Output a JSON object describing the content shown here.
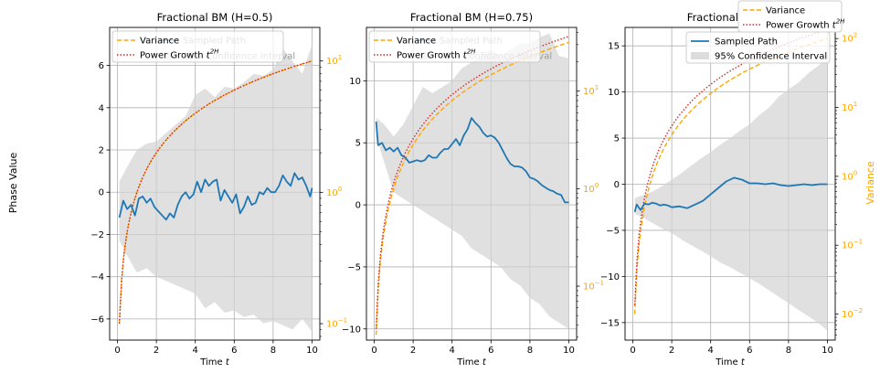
{
  "figure": {
    "left_ylabel": "Phase Value",
    "right_ylabel": "Variance",
    "floating_legend": [
      {
        "label": "Variance",
        "series": "variance"
      },
      {
        "label": "Power Growth t^2H",
        "series": "power"
      }
    ]
  },
  "colors": {
    "path": "#1f77b4",
    "variance": "#ffa500",
    "power": "#d62728",
    "ci_fill": "#d3d3d3",
    "right_axis": "#ffa500",
    "grid": "#b0b0b0"
  },
  "chart_data": [
    {
      "type": "line",
      "title": "Fractional BM (H=0.5)",
      "xlabel": "Time t",
      "ylabel": "Phase Value",
      "xlim": [
        -0.4,
        10.4
      ],
      "ylim": [
        -7.0,
        7.8
      ],
      "xticks": [
        0,
        2,
        4,
        6,
        8,
        10
      ],
      "yticks": [
        -6,
        -4,
        -2,
        0,
        2,
        4,
        6
      ],
      "right_axis": {
        "scale": "log",
        "ylim": [
          0.075,
          18
        ],
        "ticks": [
          {
            "v": 0.1,
            "exp": "−1"
          },
          {
            "v": 1,
            "exp": "0"
          },
          {
            "v": 10,
            "exp": "1"
          }
        ],
        "color": "#ffa500"
      },
      "legend": [
        {
          "label": "Variance",
          "series": "variance"
        },
        {
          "label": "Power Growth t^2H",
          "series": "power"
        },
        {
          "label": "Sampled Path",
          "series": "path",
          "hidden": true
        },
        {
          "label": "95% Confidence Interval",
          "series": "ci",
          "hidden": true
        }
      ],
      "grid": true,
      "series": [
        {
          "name": "Sampled Path",
          "kind": "path",
          "axis": "left",
          "x": [
            0.1,
            0.3,
            0.5,
            0.7,
            0.9,
            1.1,
            1.3,
            1.5,
            1.7,
            1.9,
            2.1,
            2.3,
            2.5,
            2.7,
            2.9,
            3.1,
            3.3,
            3.5,
            3.7,
            3.9,
            4.1,
            4.3,
            4.5,
            4.7,
            4.9,
            5.1,
            5.3,
            5.5,
            5.7,
            5.9,
            6.1,
            6.3,
            6.5,
            6.7,
            6.9,
            7.1,
            7.3,
            7.5,
            7.7,
            7.9,
            8.1,
            8.3,
            8.5,
            8.7,
            8.9,
            9.1,
            9.3,
            9.5,
            9.7,
            9.9,
            10.0
          ],
          "y": [
            -1.2,
            -0.4,
            -0.8,
            -0.6,
            -1.1,
            -0.3,
            -0.2,
            -0.5,
            -0.3,
            -0.7,
            -0.9,
            -1.1,
            -1.3,
            -1.0,
            -1.2,
            -0.6,
            -0.2,
            0.0,
            -0.3,
            -0.1,
            0.5,
            0.0,
            0.6,
            0.3,
            0.5,
            0.6,
            -0.4,
            0.1,
            -0.2,
            -0.5,
            -0.1,
            -1.0,
            -0.7,
            -0.2,
            -0.6,
            -0.5,
            0.0,
            -0.1,
            0.2,
            0.0,
            0.0,
            0.3,
            0.8,
            0.5,
            0.3,
            0.9,
            0.6,
            0.7,
            0.3,
            -0.2,
            0.2
          ]
        },
        {
          "name": "95% Confidence Interval",
          "kind": "ci",
          "axis": "left",
          "x": [
            0.1,
            0.5,
            1,
            1.5,
            2,
            2.5,
            3,
            3.5,
            4,
            4.5,
            5,
            5.5,
            6,
            6.5,
            7,
            7.5,
            8,
            8.5,
            9,
            9.5,
            10
          ],
          "upper": [
            0.5,
            1.2,
            2.0,
            2.3,
            2.4,
            2.8,
            3.2,
            3.6,
            4.6,
            4.9,
            4.5,
            5.0,
            4.9,
            5.2,
            5.6,
            5.5,
            5.8,
            6.8,
            6.2,
            5.6,
            7.0
          ],
          "lower": [
            -2.3,
            -3.0,
            -3.8,
            -3.6,
            -4.0,
            -4.2,
            -4.4,
            -4.6,
            -4.8,
            -5.5,
            -5.2,
            -5.7,
            -5.6,
            -5.9,
            -5.8,
            -6.2,
            -6.1,
            -6.3,
            -6.5,
            -6.0,
            -6.6
          ]
        },
        {
          "name": "Variance",
          "kind": "variance",
          "axis": "right",
          "func": "power",
          "a": 1,
          "exponent": 1.0,
          "x_range": [
            0.1,
            10
          ]
        },
        {
          "name": "Power Growth t^2H",
          "kind": "power",
          "axis": "right",
          "func": "power",
          "a": 1,
          "exponent": 1.0,
          "x_range": [
            0.1,
            10
          ]
        }
      ]
    },
    {
      "type": "line",
      "title": "Fractional BM (H=0.75)",
      "xlabel": "Time t",
      "ylabel": "",
      "xlim": [
        -0.4,
        10.4
      ],
      "ylim": [
        -10.9,
        14.3
      ],
      "xticks": [
        0,
        2,
        4,
        6,
        8,
        10
      ],
      "yticks": [
        -10,
        -5,
        0,
        5,
        10
      ],
      "right_axis": {
        "scale": "log",
        "ylim": [
          0.028,
          45
        ],
        "ticks": [
          {
            "v": 0.1,
            "exp": "−1"
          },
          {
            "v": 1,
            "exp": "0"
          },
          {
            "v": 10,
            "exp": "1"
          }
        ],
        "color": "#ffa500"
      },
      "legend": [
        {
          "label": "Variance",
          "series": "variance"
        },
        {
          "label": "Power Growth t^2H",
          "series": "power"
        },
        {
          "label": "Sampled Path",
          "series": "path",
          "hidden": true
        },
        {
          "label": "95% Confidence Interval",
          "series": "ci",
          "hidden": true
        }
      ],
      "grid": true,
      "series": [
        {
          "name": "Sampled Path",
          "kind": "path",
          "axis": "left",
          "x": [
            0.1,
            0.2,
            0.4,
            0.6,
            0.8,
            1.0,
            1.2,
            1.4,
            1.6,
            1.8,
            2.0,
            2.2,
            2.4,
            2.6,
            2.8,
            3.0,
            3.2,
            3.4,
            3.6,
            3.8,
            4.0,
            4.2,
            4.4,
            4.6,
            4.8,
            5.0,
            5.2,
            5.4,
            5.6,
            5.8,
            6.0,
            6.2,
            6.4,
            6.6,
            6.8,
            7.0,
            7.2,
            7.4,
            7.6,
            7.8,
            8.0,
            8.2,
            8.4,
            8.6,
            8.8,
            9.0,
            9.2,
            9.4,
            9.6,
            9.8,
            10.0
          ],
          "y": [
            6.7,
            4.8,
            5.0,
            4.4,
            4.6,
            4.3,
            4.6,
            4.0,
            3.8,
            3.4,
            3.5,
            3.6,
            3.5,
            3.6,
            4.0,
            3.8,
            3.8,
            4.2,
            4.5,
            4.5,
            4.9,
            5.3,
            4.8,
            5.6,
            6.1,
            7.0,
            6.6,
            6.3,
            5.8,
            5.5,
            5.6,
            5.4,
            5.0,
            4.4,
            3.8,
            3.3,
            3.1,
            3.1,
            3.0,
            2.7,
            2.2,
            2.1,
            1.9,
            1.6,
            1.4,
            1.2,
            1.1,
            0.9,
            0.8,
            0.2,
            0.2
          ]
        },
        {
          "name": "95% Confidence Interval",
          "kind": "ci",
          "axis": "left",
          "x": [
            0.1,
            0.5,
            1,
            1.5,
            2,
            2.5,
            3,
            3.5,
            4,
            4.5,
            5,
            5.5,
            6,
            6.5,
            7,
            7.5,
            8,
            8.5,
            9,
            9.5,
            10
          ],
          "upper": [
            7.0,
            6.5,
            5.5,
            6.5,
            8.0,
            9.5,
            9.0,
            9.5,
            10.0,
            11.0,
            11.5,
            12.0,
            12.5,
            12.0,
            12.5,
            13.0,
            13.0,
            13.5,
            13.8,
            12.0,
            11.8
          ],
          "lower": [
            5.5,
            3.5,
            1.0,
            0.5,
            0.0,
            -0.5,
            -1.0,
            -1.5,
            -2.0,
            -2.5,
            -3.5,
            -4.0,
            -4.5,
            -5.0,
            -6.0,
            -6.5,
            -7.5,
            -8.0,
            -9.0,
            -9.5,
            -10.0
          ]
        },
        {
          "name": "Variance",
          "kind": "variance",
          "axis": "right",
          "func": "power",
          "a": 1,
          "exponent": 1.5,
          "x_range": [
            0.1,
            10
          ]
        },
        {
          "name": "Power Growth t^2H",
          "kind": "power",
          "axis": "right",
          "func": "power",
          "a": 1.15,
          "exponent": 1.5,
          "x_range": [
            0.1,
            10
          ]
        }
      ]
    },
    {
      "type": "line",
      "title": "Fractional BM (H",
      "xlabel": "Time t",
      "ylabel": "",
      "xlim": [
        -0.4,
        10.4
      ],
      "ylim": [
        -16.9,
        17.0
      ],
      "xticks": [
        0,
        2,
        4,
        6,
        8,
        10
      ],
      "yticks": [
        -15,
        -10,
        -5,
        0,
        5,
        10,
        15
      ],
      "right_axis": {
        "scale": "log",
        "ylim": [
          0.0042,
          145
        ],
        "ticks": [
          {
            "v": 0.01,
            "exp": "−2"
          },
          {
            "v": 0.1,
            "exp": "−1"
          },
          {
            "v": 1,
            "exp": "0"
          },
          {
            "v": 10,
            "exp": "1"
          },
          {
            "v": 100,
            "exp": "2"
          }
        ],
        "color": "#ffa500"
      },
      "legend": [
        {
          "label": "Sampled Path",
          "series": "path"
        },
        {
          "label": "95% Confidence Interval",
          "series": "ci"
        }
      ],
      "grid": true,
      "series": [
        {
          "name": "Sampled Path",
          "kind": "path",
          "axis": "left",
          "x": [
            0.1,
            0.2,
            0.4,
            0.6,
            0.8,
            1.0,
            1.2,
            1.4,
            1.6,
            1.8,
            2.0,
            2.4,
            2.8,
            3.2,
            3.6,
            4.0,
            4.4,
            4.8,
            5.2,
            5.6,
            6.0,
            6.4,
            6.8,
            7.2,
            7.6,
            8.0,
            8.4,
            8.8,
            9.2,
            9.6,
            10.0
          ],
          "y": [
            -3.0,
            -2.2,
            -2.8,
            -2.1,
            -2.2,
            -2.0,
            -2.1,
            -2.3,
            -2.2,
            -2.3,
            -2.5,
            -2.4,
            -2.6,
            -2.2,
            -1.8,
            -1.1,
            -0.4,
            0.3,
            0.7,
            0.5,
            0.1,
            0.1,
            0.0,
            0.1,
            -0.1,
            -0.2,
            -0.1,
            0.0,
            -0.1,
            0.0,
            0.0
          ]
        },
        {
          "name": "95% Confidence Interval",
          "kind": "ci",
          "axis": "left",
          "x": [
            0.1,
            0.5,
            1,
            1.5,
            2,
            2.5,
            3,
            3.5,
            4,
            4.5,
            5,
            5.5,
            6,
            6.5,
            7,
            7.5,
            8,
            8.5,
            9,
            9.5,
            10
          ],
          "upper": [
            -1.5,
            -1.2,
            -0.8,
            -0.2,
            0.5,
            1.2,
            2.0,
            2.8,
            3.5,
            4.3,
            5.0,
            5.8,
            6.5,
            7.5,
            8.3,
            9.5,
            10.3,
            11.0,
            12.0,
            12.8,
            13.6
          ],
          "lower": [
            -3.2,
            -3.6,
            -4.2,
            -4.8,
            -5.3,
            -6.0,
            -6.6,
            -7.2,
            -7.8,
            -8.5,
            -9.0,
            -9.6,
            -10.2,
            -10.8,
            -11.5,
            -12.2,
            -12.9,
            -13.6,
            -14.3,
            -15.0,
            -15.9
          ]
        },
        {
          "name": "Variance",
          "kind": "variance",
          "axis": "right",
          "func": "power",
          "a": 1,
          "exponent": 2.0,
          "x_range": [
            0.1,
            10
          ]
        },
        {
          "name": "Power Growth t^2H",
          "kind": "power",
          "axis": "right",
          "func": "power",
          "a": 1.35,
          "exponent": 2.0,
          "x_range": [
            0.1,
            10
          ]
        }
      ]
    }
  ]
}
